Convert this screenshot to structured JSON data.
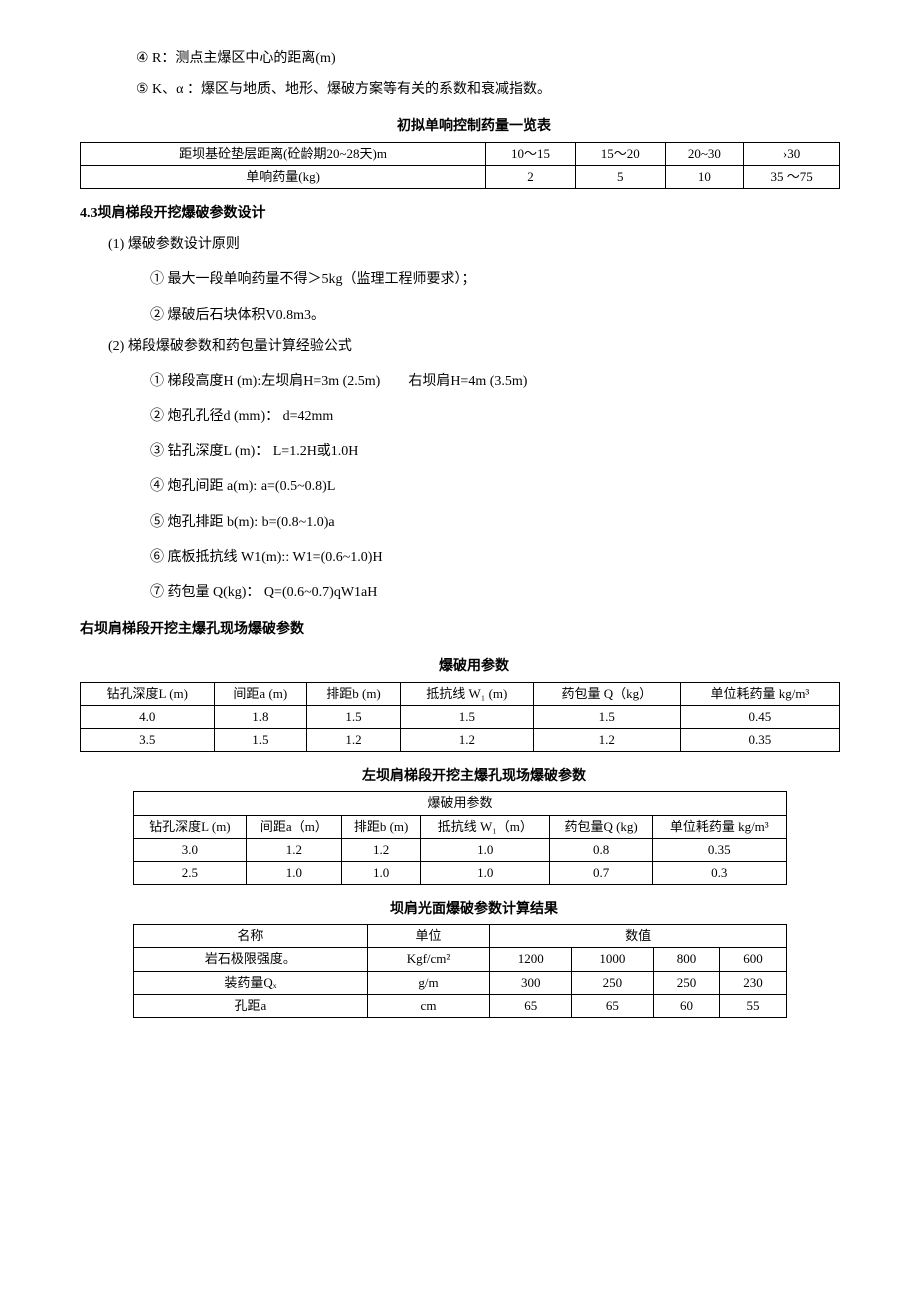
{
  "intro": {
    "line4": "④ R：测点主爆区中心的距离(m)",
    "line5": "⑤ K、α ：爆区与地质、地形、爆破方案等有关的系数和衰减指数。"
  },
  "table1": {
    "title": "初拟单响控制药量一览表",
    "headers": [
      "距坝基砼垫层距离(砼龄期20~28天)m",
      "10～15",
      "15～20",
      "20~30",
      "›30"
    ],
    "rows": [
      [
        "单响药量(kg)",
        "2",
        "5",
        "10",
        "35 ～75"
      ]
    ]
  },
  "section43": {
    "heading": "4.3坝肩梯段开挖爆破参数设计",
    "sub1": "(1) 爆破参数设计原则",
    "sub1_a": "① 最大一段单响药量不得＞5kg（监理工程师要求）；",
    "sub1_b": "② 爆破后石块体积V0.8m3。",
    "sub2": "(2) 梯段爆破参数和药包量计算经验公式",
    "sub2_a": "① 梯段高度H (m):左坝肩H=3m (2.5m)        右坝肩H=4m (3.5m)",
    "sub2_b": "② 炮孔孔径d (mm)： d=42mm",
    "sub2_c": "③ 钻孔深度L (m)： L=1.2H或1.0H",
    "sub2_d": "④ 炮孔间距 a(m): a=(0.5~0.8)L",
    "sub2_e": "⑤ 炮孔排距 b(m): b=(0.8~1.0)a",
    "sub2_f": "⑥ 底板抵抗线 W1(m):: W1=(0.6~1.0)H",
    "sub2_g": "⑦ 药包量 Q(kg)： Q=(0.6~0.7)qW1aH"
  },
  "table2": {
    "preTitle": "右坝肩梯段开挖主爆孔现场爆破参数",
    "title": "爆破用参数",
    "headers": [
      "钻孔深度L (m)",
      "间距a (m)",
      "排距b (m)",
      "抵抗线 W₁ (m)",
      "药包量 Q（kg）",
      "单位耗药量 kg/m³"
    ],
    "rows": [
      [
        "4.0",
        "1.8",
        "1.5",
        "1.5",
        "1.5",
        "0.45"
      ],
      [
        "3.5",
        "1.5",
        "1.2",
        "1.2",
        "1.2",
        "0.35"
      ]
    ]
  },
  "table3": {
    "title": "左坝肩梯段开挖主爆孔现场爆破参数",
    "subTitle": "爆破用参数",
    "headers": [
      "钻孔深度L (m)",
      "间距a（m）",
      "排距b (m)",
      "抵抗线 W₁（m）",
      "药包量Q (kg)",
      "单位耗药量 kg/m³"
    ],
    "rows": [
      [
        "3.0",
        "1.2",
        "1.2",
        "1.0",
        "0.8",
        "0.35"
      ],
      [
        "2.5",
        "1.0",
        "1.0",
        "1.0",
        "0.7",
        "0.3"
      ]
    ]
  },
  "table4": {
    "title": "坝肩光面爆破参数计算结果",
    "h1": "名称",
    "h2": "单位",
    "h3": "数值",
    "rows": [
      [
        "岩石极限强度。",
        "Kgf/cm²",
        "1200",
        "1000",
        "800",
        "600"
      ],
      [
        "装药量Qₓ",
        "g/m",
        "300",
        "250",
        "250",
        "230"
      ],
      [
        "孔距a",
        "cm",
        "65",
        "65",
        "60",
        "55"
      ]
    ]
  }
}
